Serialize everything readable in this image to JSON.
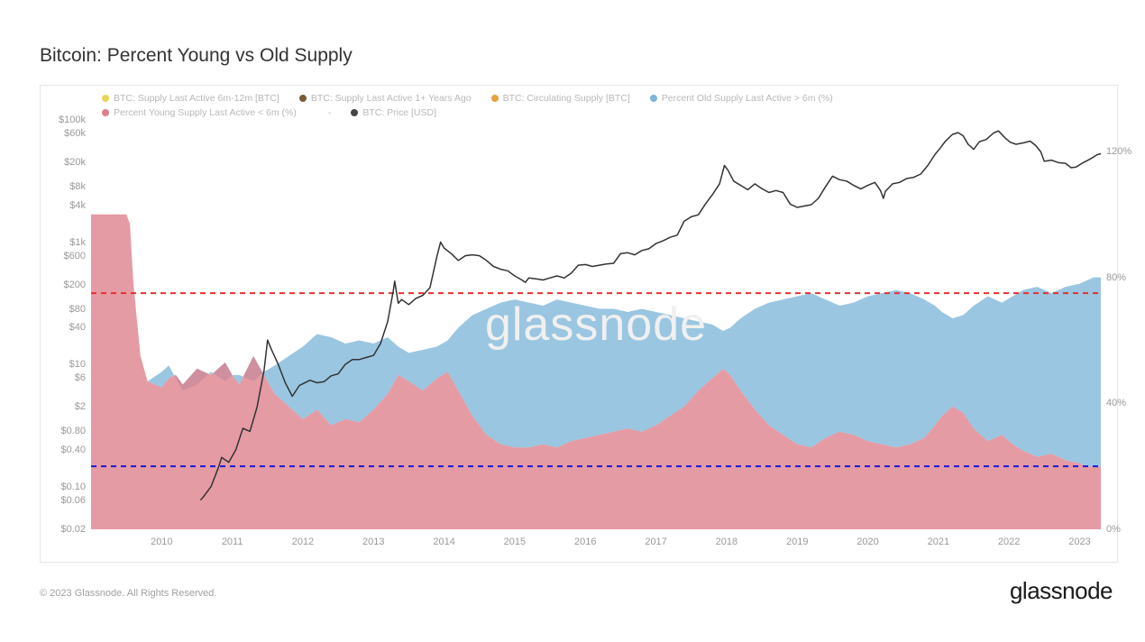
{
  "title": "Bitcoin: Percent Young vs Old Supply",
  "watermark": "glassnode",
  "footer_copy": "© 2023 Glassnode. All Rights Reserved.",
  "footer_logo": "glassnode",
  "chart": {
    "type": "combo-stacked-area-line",
    "background": "#ffffff",
    "border": "#e5e5e5",
    "frame_w": 1196,
    "frame_h": 530,
    "inner_w": 1120,
    "inner_h": 454,
    "legend_items": [
      {
        "label": "BTC: Supply Last Active 6m-12m [BTC]",
        "color": "#e8d756"
      },
      {
        "label": "BTC: Supply Last Active 1+ Years Ago",
        "color": "#7a5c3a"
      },
      {
        "label": "BTC: Circulating Supply [BTC]",
        "color": "#e8a13d"
      },
      {
        "label": "Percent Old Supply Last Active > 6m (%)",
        "color": "#7eb6d9"
      },
      {
        "label": "Percent Young Supply Last Active < 6m (%)",
        "color": "#de7f8a"
      },
      {
        "label": "-",
        "color": "#7fb8dc",
        "hidden_dot": true
      },
      {
        "label": "BTC: Price [USD]",
        "color": "#444444"
      }
    ],
    "x_axis": {
      "min": 2009.0,
      "max": 2023.3,
      "ticks": [
        2010,
        2011,
        2012,
        2013,
        2014,
        2015,
        2016,
        2017,
        2018,
        2019,
        2020,
        2021,
        2022,
        2023
      ]
    },
    "y_left": {
      "scale": "log",
      "label_color": "#999999",
      "ticks": [
        0.02,
        0.06,
        0.1,
        0.4,
        0.8,
        2,
        6,
        10,
        40,
        80,
        200,
        600,
        1000,
        4000,
        8000,
        20000,
        60000,
        100000
      ],
      "tick_labels": [
        "$0.02",
        "$0.06",
        "$0.10",
        "$0.40",
        "$0.80",
        "$2",
        "$6",
        "$10",
        "$40",
        "$80",
        "$200",
        "$600",
        "$1k",
        "$4k",
        "$8k",
        "$20k",
        "$60k",
        "$100k"
      ]
    },
    "y_right": {
      "scale": "linear",
      "min": 0,
      "max": 130,
      "ticks": [
        0,
        40,
        80,
        120
      ],
      "tick_labels": [
        "0%",
        "40%",
        "80%",
        "120%"
      ]
    },
    "young_pct": {
      "color": "#de7f8a",
      "opacity": 0.78,
      "data": [
        [
          2009.0,
          100
        ],
        [
          2009.5,
          100
        ],
        [
          2009.55,
          97
        ],
        [
          2009.6,
          78
        ],
        [
          2009.7,
          55
        ],
        [
          2009.8,
          47
        ],
        [
          2010.0,
          45
        ],
        [
          2010.1,
          48
        ],
        [
          2010.2,
          49
        ],
        [
          2010.3,
          46
        ],
        [
          2010.5,
          51
        ],
        [
          2010.7,
          49
        ],
        [
          2010.9,
          53
        ],
        [
          2011.0,
          49
        ],
        [
          2011.1,
          46
        ],
        [
          2011.3,
          55
        ],
        [
          2011.45,
          49
        ],
        [
          2011.6,
          43
        ],
        [
          2011.8,
          39
        ],
        [
          2012.0,
          35
        ],
        [
          2012.2,
          38
        ],
        [
          2012.4,
          33
        ],
        [
          2012.6,
          35
        ],
        [
          2012.8,
          34
        ],
        [
          2013.0,
          38
        ],
        [
          2013.2,
          43
        ],
        [
          2013.35,
          49
        ],
        [
          2013.5,
          47
        ],
        [
          2013.7,
          44
        ],
        [
          2013.9,
          48
        ],
        [
          2014.05,
          50
        ],
        [
          2014.2,
          44
        ],
        [
          2014.4,
          36
        ],
        [
          2014.6,
          30
        ],
        [
          2014.8,
          27
        ],
        [
          2015.0,
          26
        ],
        [
          2015.2,
          26
        ],
        [
          2015.4,
          27
        ],
        [
          2015.6,
          26
        ],
        [
          2015.8,
          28
        ],
        [
          2016.0,
          29
        ],
        [
          2016.2,
          30
        ],
        [
          2016.4,
          31
        ],
        [
          2016.6,
          32
        ],
        [
          2016.8,
          31
        ],
        [
          2017.0,
          33
        ],
        [
          2017.2,
          36
        ],
        [
          2017.4,
          39
        ],
        [
          2017.6,
          44
        ],
        [
          2017.8,
          48
        ],
        [
          2017.95,
          51
        ],
        [
          2018.05,
          49
        ],
        [
          2018.2,
          44
        ],
        [
          2018.4,
          38
        ],
        [
          2018.6,
          33
        ],
        [
          2018.8,
          30
        ],
        [
          2019.0,
          27
        ],
        [
          2019.2,
          26
        ],
        [
          2019.4,
          29
        ],
        [
          2019.6,
          31
        ],
        [
          2019.8,
          30
        ],
        [
          2020.0,
          28
        ],
        [
          2020.2,
          27
        ],
        [
          2020.4,
          26
        ],
        [
          2020.6,
          27
        ],
        [
          2020.8,
          29
        ],
        [
          2020.95,
          33
        ],
        [
          2021.05,
          36
        ],
        [
          2021.2,
          39
        ],
        [
          2021.35,
          37
        ],
        [
          2021.5,
          32
        ],
        [
          2021.7,
          28
        ],
        [
          2021.9,
          30
        ],
        [
          2022.05,
          27
        ],
        [
          2022.2,
          25
        ],
        [
          2022.4,
          23
        ],
        [
          2022.6,
          24
        ],
        [
          2022.8,
          22
        ],
        [
          2023.0,
          21
        ],
        [
          2023.1,
          20
        ],
        [
          2023.2,
          20
        ],
        [
          2023.3,
          20
        ]
      ]
    },
    "old_pct_top": {
      "color": "#7eb6d9",
      "opacity": 0.78,
      "data": [
        [
          2009.0,
          100
        ],
        [
          2009.5,
          100
        ],
        [
          2009.55,
          97
        ],
        [
          2009.6,
          78
        ],
        [
          2009.7,
          55
        ],
        [
          2009.8,
          47
        ],
        [
          2010.0,
          50
        ],
        [
          2010.1,
          52
        ],
        [
          2010.2,
          48
        ],
        [
          2010.3,
          44
        ],
        [
          2010.5,
          46
        ],
        [
          2010.7,
          50
        ],
        [
          2010.9,
          47
        ],
        [
          2011.0,
          49
        ],
        [
          2011.1,
          49
        ],
        [
          2011.3,
          47
        ],
        [
          2011.45,
          50
        ],
        [
          2011.6,
          52
        ],
        [
          2011.8,
          55
        ],
        [
          2012.0,
          58
        ],
        [
          2012.2,
          62
        ],
        [
          2012.4,
          61
        ],
        [
          2012.6,
          59
        ],
        [
          2012.8,
          60
        ],
        [
          2013.0,
          59
        ],
        [
          2013.2,
          61
        ],
        [
          2013.35,
          58
        ],
        [
          2013.5,
          56
        ],
        [
          2013.7,
          57
        ],
        [
          2013.9,
          58
        ],
        [
          2014.05,
          60
        ],
        [
          2014.2,
          64
        ],
        [
          2014.4,
          68
        ],
        [
          2014.6,
          70
        ],
        [
          2014.8,
          72
        ],
        [
          2015.0,
          73
        ],
        [
          2015.2,
          72
        ],
        [
          2015.4,
          71
        ],
        [
          2015.6,
          73
        ],
        [
          2015.8,
          72
        ],
        [
          2016.0,
          71
        ],
        [
          2016.2,
          70
        ],
        [
          2016.4,
          70
        ],
        [
          2016.6,
          69
        ],
        [
          2016.8,
          70
        ],
        [
          2017.0,
          69
        ],
        [
          2017.2,
          68
        ],
        [
          2017.4,
          67
        ],
        [
          2017.6,
          66
        ],
        [
          2017.8,
          65
        ],
        [
          2017.95,
          63
        ],
        [
          2018.05,
          64
        ],
        [
          2018.2,
          67
        ],
        [
          2018.4,
          70
        ],
        [
          2018.6,
          72
        ],
        [
          2018.8,
          73
        ],
        [
          2019.0,
          74
        ],
        [
          2019.2,
          75
        ],
        [
          2019.4,
          73
        ],
        [
          2019.6,
          71
        ],
        [
          2019.8,
          72
        ],
        [
          2020.0,
          74
        ],
        [
          2020.2,
          75
        ],
        [
          2020.4,
          76
        ],
        [
          2020.6,
          75
        ],
        [
          2020.8,
          73
        ],
        [
          2020.95,
          71
        ],
        [
          2021.05,
          69
        ],
        [
          2021.2,
          67
        ],
        [
          2021.35,
          68
        ],
        [
          2021.5,
          71
        ],
        [
          2021.7,
          74
        ],
        [
          2021.9,
          72
        ],
        [
          2022.05,
          74
        ],
        [
          2022.2,
          76
        ],
        [
          2022.4,
          77
        ],
        [
          2022.6,
          75
        ],
        [
          2022.8,
          77
        ],
        [
          2023.0,
          78
        ],
        [
          2023.1,
          79
        ],
        [
          2023.2,
          80
        ],
        [
          2023.3,
          80
        ]
      ]
    },
    "price": {
      "color": "#333333",
      "width": 1.5,
      "data": [
        [
          2010.55,
          0.06
        ],
        [
          2010.6,
          0.07
        ],
        [
          2010.7,
          0.1
        ],
        [
          2010.8,
          0.2
        ],
        [
          2010.85,
          0.3
        ],
        [
          2010.95,
          0.25
        ],
        [
          2011.05,
          0.4
        ],
        [
          2011.15,
          0.9
        ],
        [
          2011.25,
          0.8
        ],
        [
          2011.35,
          2.0
        ],
        [
          2011.45,
          8.0
        ],
        [
          2011.5,
          25
        ],
        [
          2011.55,
          18
        ],
        [
          2011.65,
          10
        ],
        [
          2011.75,
          5.0
        ],
        [
          2011.85,
          3.0
        ],
        [
          2011.95,
          4.5
        ],
        [
          2012.1,
          5.5
        ],
        [
          2012.2,
          5.0
        ],
        [
          2012.3,
          5.2
        ],
        [
          2012.4,
          6.5
        ],
        [
          2012.5,
          7.0
        ],
        [
          2012.6,
          10
        ],
        [
          2012.7,
          12
        ],
        [
          2012.8,
          12
        ],
        [
          2012.9,
          13
        ],
        [
          2013.0,
          14
        ],
        [
          2013.1,
          22
        ],
        [
          2013.2,
          50
        ],
        [
          2013.28,
          160
        ],
        [
          2013.3,
          230
        ],
        [
          2013.35,
          100
        ],
        [
          2013.4,
          115
        ],
        [
          2013.5,
          95
        ],
        [
          2013.6,
          120
        ],
        [
          2013.7,
          135
        ],
        [
          2013.8,
          180
        ],
        [
          2013.9,
          600
        ],
        [
          2013.95,
          1000
        ],
        [
          2014.0,
          800
        ],
        [
          2014.1,
          650
        ],
        [
          2014.2,
          500
        ],
        [
          2014.3,
          600
        ],
        [
          2014.4,
          620
        ],
        [
          2014.5,
          600
        ],
        [
          2014.6,
          500
        ],
        [
          2014.7,
          400
        ],
        [
          2014.8,
          360
        ],
        [
          2014.9,
          340
        ],
        [
          2015.0,
          280
        ],
        [
          2015.1,
          240
        ],
        [
          2015.15,
          220
        ],
        [
          2015.2,
          260
        ],
        [
          2015.3,
          250
        ],
        [
          2015.4,
          240
        ],
        [
          2015.5,
          260
        ],
        [
          2015.6,
          280
        ],
        [
          2015.7,
          260
        ],
        [
          2015.8,
          310
        ],
        [
          2015.9,
          420
        ],
        [
          2016.0,
          430
        ],
        [
          2016.1,
          400
        ],
        [
          2016.2,
          420
        ],
        [
          2016.3,
          440
        ],
        [
          2016.4,
          450
        ],
        [
          2016.5,
          650
        ],
        [
          2016.6,
          670
        ],
        [
          2016.7,
          620
        ],
        [
          2016.8,
          730
        ],
        [
          2016.9,
          780
        ],
        [
          2017.0,
          950
        ],
        [
          2017.1,
          1050
        ],
        [
          2017.2,
          1200
        ],
        [
          2017.3,
          1300
        ],
        [
          2017.4,
          2200
        ],
        [
          2017.5,
          2600
        ],
        [
          2017.6,
          2800
        ],
        [
          2017.7,
          4200
        ],
        [
          2017.8,
          6000
        ],
        [
          2017.9,
          9000
        ],
        [
          2017.97,
          18000
        ],
        [
          2018.02,
          15000
        ],
        [
          2018.1,
          10000
        ],
        [
          2018.2,
          8500
        ],
        [
          2018.3,
          7200
        ],
        [
          2018.4,
          9000
        ],
        [
          2018.5,
          7500
        ],
        [
          2018.6,
          6500
        ],
        [
          2018.7,
          7000
        ],
        [
          2018.8,
          6500
        ],
        [
          2018.9,
          4200
        ],
        [
          2019.0,
          3700
        ],
        [
          2019.1,
          3900
        ],
        [
          2019.2,
          4100
        ],
        [
          2019.3,
          5200
        ],
        [
          2019.4,
          8000
        ],
        [
          2019.5,
          12000
        ],
        [
          2019.6,
          10500
        ],
        [
          2019.7,
          10000
        ],
        [
          2019.8,
          8500
        ],
        [
          2019.9,
          7400
        ],
        [
          2020.0,
          8500
        ],
        [
          2020.1,
          9500
        ],
        [
          2020.18,
          7000
        ],
        [
          2020.22,
          5200
        ],
        [
          2020.25,
          6800
        ],
        [
          2020.35,
          9000
        ],
        [
          2020.45,
          9500
        ],
        [
          2020.55,
          11000
        ],
        [
          2020.65,
          11500
        ],
        [
          2020.75,
          13000
        ],
        [
          2020.85,
          18000
        ],
        [
          2020.95,
          27000
        ],
        [
          2021.02,
          34000
        ],
        [
          2021.1,
          45000
        ],
        [
          2021.2,
          58000
        ],
        [
          2021.28,
          62000
        ],
        [
          2021.35,
          55000
        ],
        [
          2021.42,
          40000
        ],
        [
          2021.5,
          33000
        ],
        [
          2021.58,
          44000
        ],
        [
          2021.68,
          48000
        ],
        [
          2021.78,
          61000
        ],
        [
          2021.85,
          66000
        ],
        [
          2021.95,
          50000
        ],
        [
          2022.02,
          43000
        ],
        [
          2022.1,
          40000
        ],
        [
          2022.2,
          42000
        ],
        [
          2022.3,
          45000
        ],
        [
          2022.38,
          38000
        ],
        [
          2022.45,
          30000
        ],
        [
          2022.5,
          21000
        ],
        [
          2022.6,
          22000
        ],
        [
          2022.7,
          20000
        ],
        [
          2022.8,
          19500
        ],
        [
          2022.88,
          16500
        ],
        [
          2022.95,
          17000
        ],
        [
          2023.05,
          20000
        ],
        [
          2023.15,
          23000
        ],
        [
          2023.25,
          27000
        ],
        [
          2023.3,
          28000
        ]
      ]
    },
    "ref_lines": [
      {
        "value": 75,
        "color": "#e63030",
        "dash": "6,5",
        "width": 2
      },
      {
        "value": 20,
        "color": "#1818d8",
        "dash": "6,5",
        "width": 2
      }
    ]
  }
}
